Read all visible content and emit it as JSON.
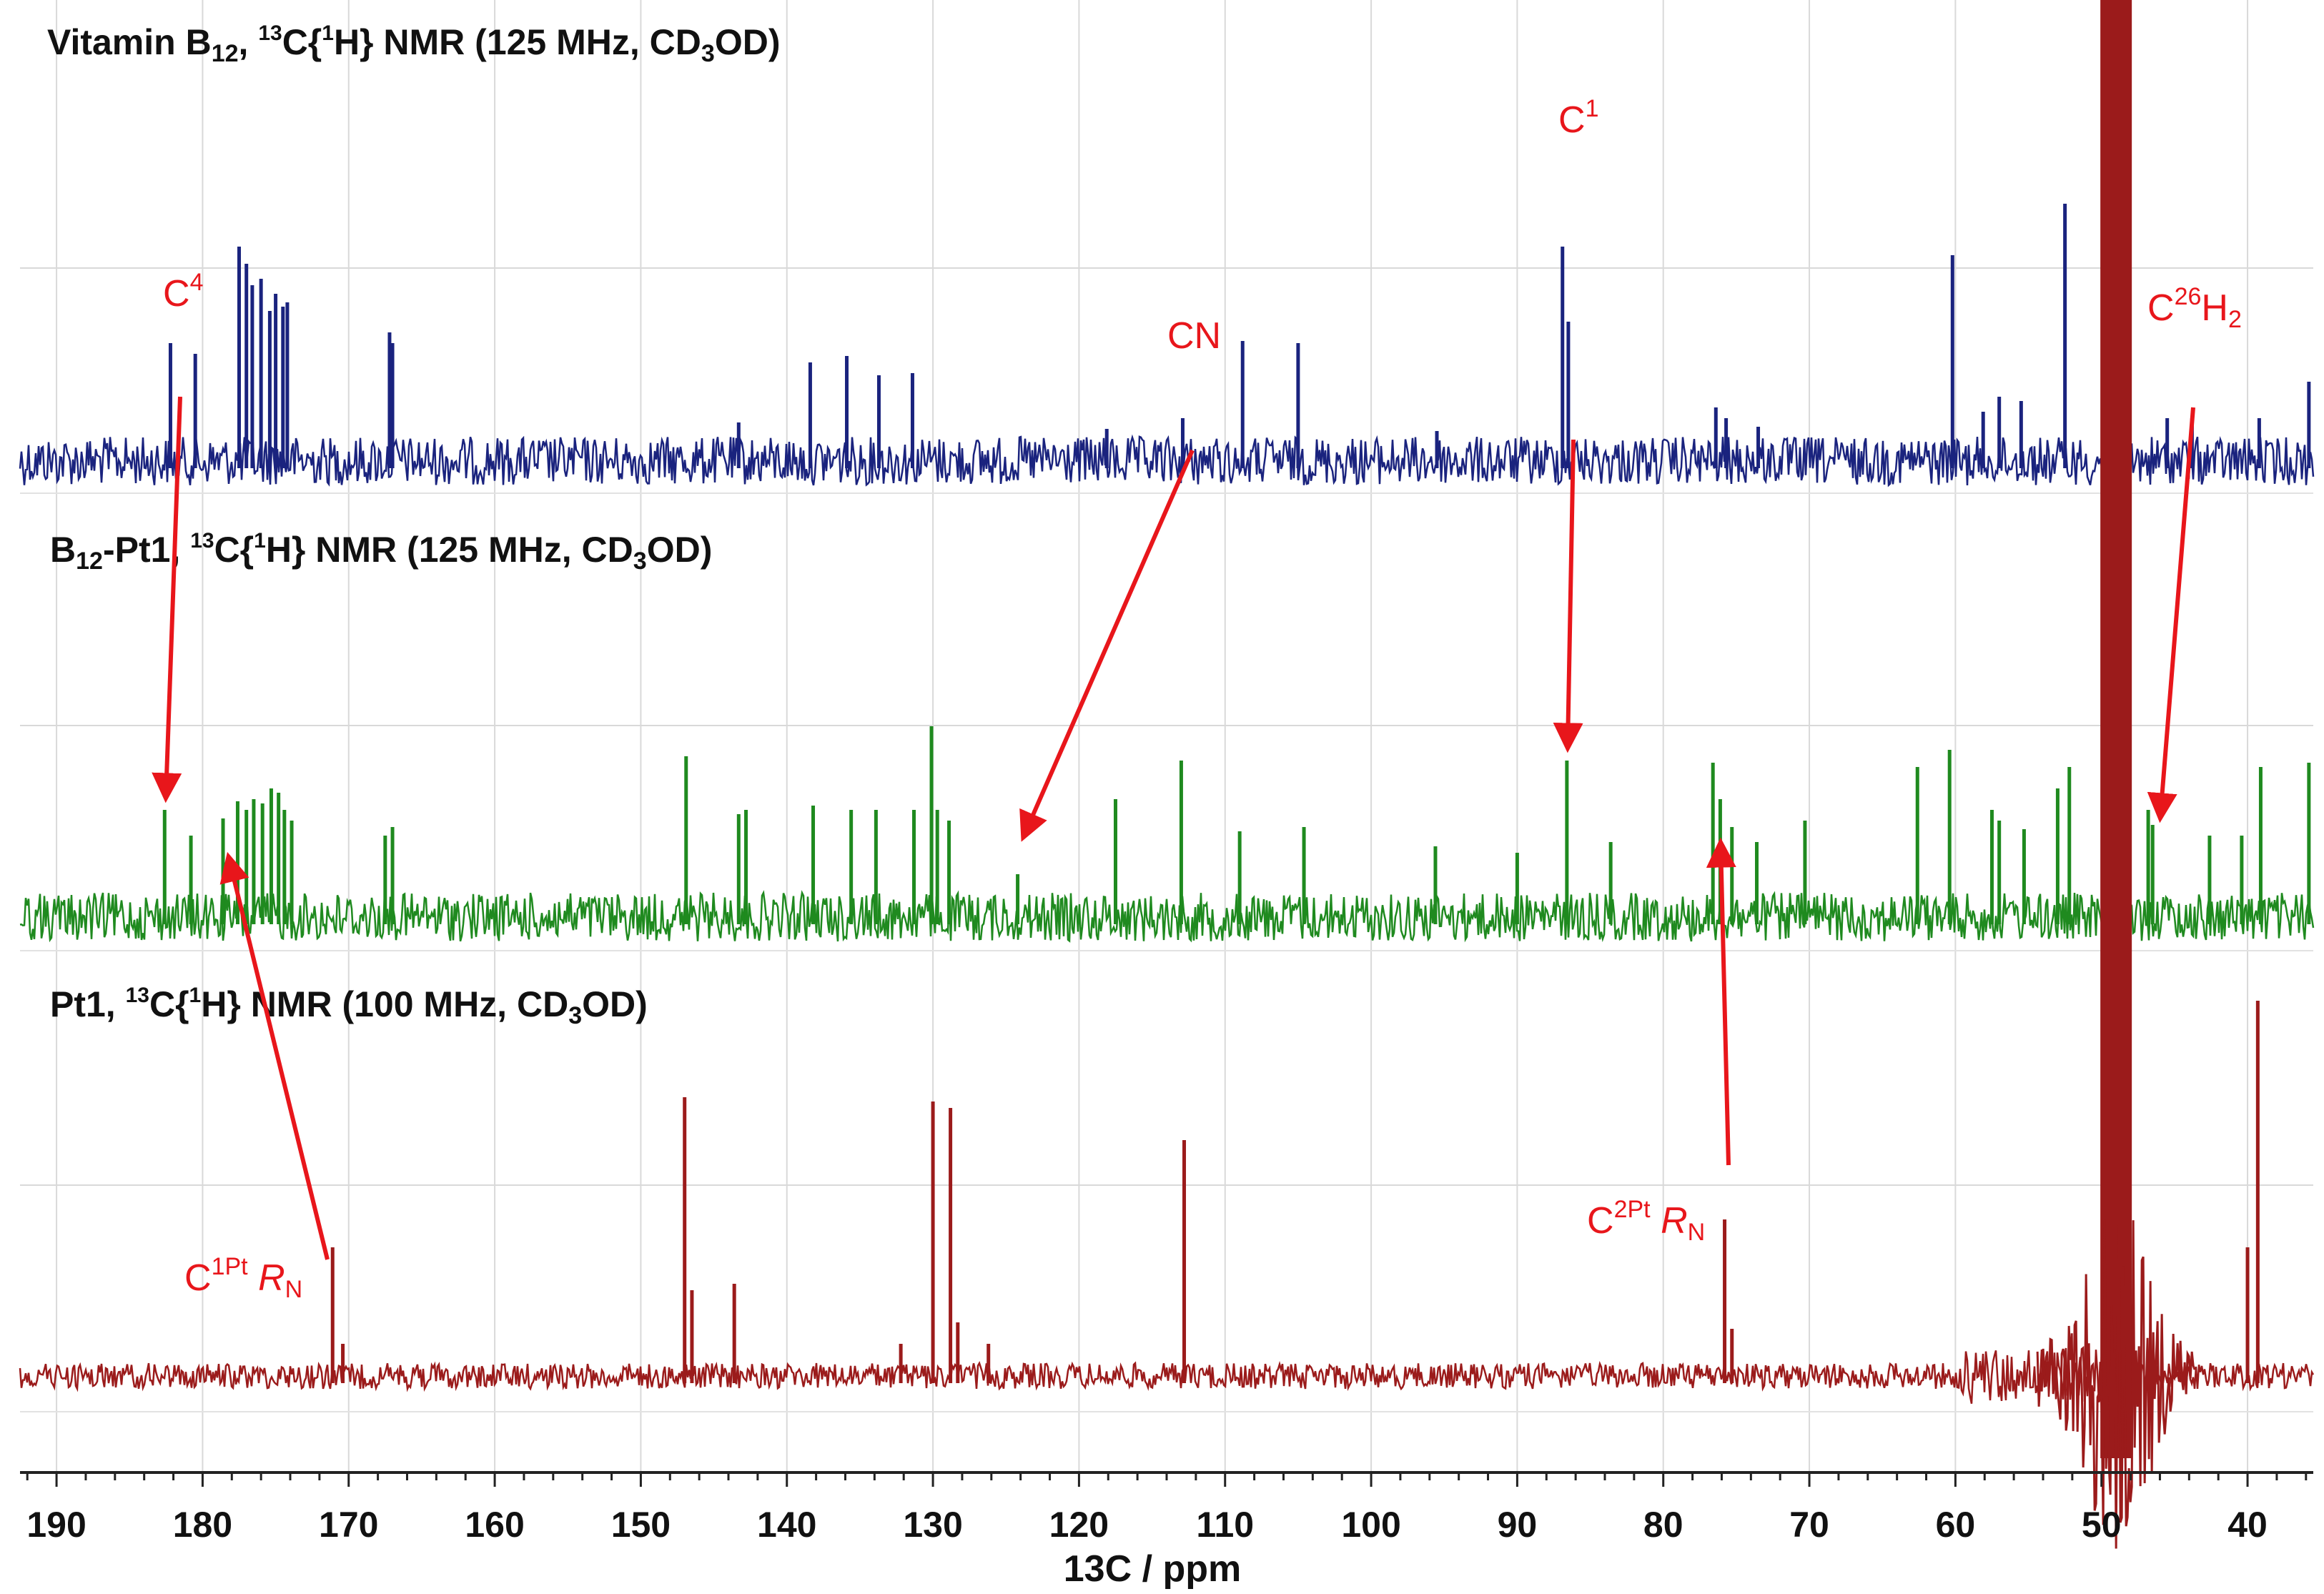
{
  "chart_data": {
    "type": "line",
    "xlabel": "13C / ppm",
    "xlim": [
      192.5,
      35.5
    ],
    "x_reversed": true,
    "x_ticks": [
      190,
      180,
      170,
      160,
      150,
      140,
      130,
      120,
      110,
      100,
      90,
      80,
      70,
      60,
      50,
      40
    ],
    "grid": true,
    "colors": {
      "vitamin_b12": "#1a237e",
      "b12_pt1": "#1f8a1f",
      "pt1": "#9b1b1b",
      "annotation": "#e8161b",
      "text": "#111111"
    },
    "series": [
      {
        "name_parts": {
          "prefix": "Vitamin B",
          "sub1": "12",
          "mid1": ", ",
          "sup": "13",
          "mid2": "C{",
          "sup2": "1",
          "mid3": "H} NMR (125 MHz, CD",
          "sub2": "3",
          "tail": "OD)"
        },
        "peaks": [
          [
            182.2,
            0.55
          ],
          [
            180.5,
            0.5
          ],
          [
            177.5,
            1.0
          ],
          [
            177.0,
            0.92
          ],
          [
            176.6,
            0.82
          ],
          [
            176.0,
            0.85
          ],
          [
            175.4,
            0.7
          ],
          [
            175.0,
            0.78
          ],
          [
            174.5,
            0.72
          ],
          [
            174.2,
            0.74
          ],
          [
            167.2,
            0.6
          ],
          [
            167.0,
            0.55
          ],
          [
            138.4,
            0.46
          ],
          [
            135.9,
            0.49
          ],
          [
            133.7,
            0.4
          ],
          [
            131.4,
            0.41
          ],
          [
            143.3,
            0.18
          ],
          [
            118.1,
            0.15
          ],
          [
            112.9,
            0.2
          ],
          [
            108.8,
            0.56
          ],
          [
            105.0,
            0.55
          ],
          [
            95.5,
            0.14
          ],
          [
            86.9,
            1.0
          ],
          [
            86.5,
            0.65
          ],
          [
            76.4,
            0.25
          ],
          [
            75.7,
            0.2
          ],
          [
            73.5,
            0.16
          ],
          [
            60.2,
            0.96
          ],
          [
            58.1,
            0.23
          ],
          [
            57.0,
            0.3
          ],
          [
            55.5,
            0.28
          ],
          [
            52.5,
            1.2
          ],
          [
            49.7,
            0.18
          ],
          [
            45.5,
            0.2
          ],
          [
            43.8,
            0.2
          ],
          [
            39.2,
            0.2
          ],
          [
            35.8,
            0.37
          ]
        ],
        "unlabeled_peak_heights_note_omitted": true
      },
      {
        "name_parts": {
          "prefix": "B",
          "sub1": "12",
          "mid1": "-Pt1, ",
          "sup": "13",
          "mid2": "C{",
          "sup2": "1",
          "mid3": "H} NMR (125 MHz, CD",
          "sub2": "3",
          "tail": "OD)"
        },
        "peaks": [
          [
            182.6,
            0.5
          ],
          [
            180.8,
            0.38
          ],
          [
            178.6,
            0.46
          ],
          [
            177.6,
            0.54
          ],
          [
            177.0,
            0.5
          ],
          [
            176.5,
            0.55
          ],
          [
            175.9,
            0.53
          ],
          [
            175.3,
            0.6
          ],
          [
            174.8,
            0.58
          ],
          [
            174.4,
            0.5
          ],
          [
            173.9,
            0.45
          ],
          [
            167.5,
            0.38
          ],
          [
            167.0,
            0.42
          ],
          [
            146.9,
            0.75
          ],
          [
            143.3,
            0.48
          ],
          [
            142.8,
            0.5
          ],
          [
            138.2,
            0.52
          ],
          [
            135.6,
            0.5
          ],
          [
            133.9,
            0.5
          ],
          [
            131.3,
            0.5
          ],
          [
            130.1,
            0.89
          ],
          [
            129.7,
            0.5
          ],
          [
            128.9,
            0.45
          ],
          [
            124.2,
            0.2
          ],
          [
            117.5,
            0.55
          ],
          [
            113.0,
            0.73
          ],
          [
            109.0,
            0.4
          ],
          [
            104.6,
            0.42
          ],
          [
            95.6,
            0.33
          ],
          [
            90.0,
            0.3
          ],
          [
            86.6,
            0.73
          ],
          [
            83.6,
            0.35
          ],
          [
            76.6,
            0.72
          ],
          [
            76.1,
            0.55
          ],
          [
            75.3,
            0.42
          ],
          [
            73.6,
            0.35
          ],
          [
            70.3,
            0.45
          ],
          [
            62.6,
            0.7
          ],
          [
            60.4,
            0.78
          ],
          [
            57.5,
            0.5
          ],
          [
            57.0,
            0.45
          ],
          [
            55.3,
            0.41
          ],
          [
            53.0,
            0.6
          ],
          [
            52.2,
            0.7
          ],
          [
            46.8,
            0.5
          ],
          [
            46.5,
            0.43
          ],
          [
            42.6,
            0.38
          ],
          [
            40.4,
            0.38
          ],
          [
            39.1,
            0.7
          ],
          [
            35.8,
            0.72
          ]
        ]
      },
      {
        "name_parts": {
          "prefix": "Pt1, ",
          "sub1": "",
          "mid1": "",
          "sup": "13",
          "mid2": "C{",
          "sup2": "1",
          "mid3": "H} NMR (100 MHz, CD",
          "sub2": "3",
          "tail": "OD)"
        },
        "peaks": [
          [
            171.1,
            0.6
          ],
          [
            170.4,
            0.15
          ],
          [
            147.0,
            1.3
          ],
          [
            146.5,
            0.4
          ],
          [
            143.6,
            0.43
          ],
          [
            132.2,
            0.15
          ],
          [
            130.0,
            1.28
          ],
          [
            128.8,
            1.25
          ],
          [
            128.3,
            0.25
          ],
          [
            126.2,
            0.15
          ],
          [
            112.8,
            1.1
          ],
          [
            75.8,
            0.73
          ],
          [
            75.3,
            0.22
          ],
          [
            40.0,
            0.6
          ],
          [
            39.3,
            1.75
          ]
        ],
        "solvent_peak_ppm": 49.0
      }
    ],
    "annotations": {
      "c4": {
        "base": "C",
        "sup": "4"
      },
      "cn": {
        "base": "CN"
      },
      "c1": {
        "base": "C",
        "sup": "1"
      },
      "c26": {
        "base": "C",
        "sup": "26",
        "mid": "H",
        "sub": "2"
      },
      "c1pt": {
        "base": "C",
        "sup": "1Pt",
        "space": " ",
        "italic": "R",
        "sub": "N"
      },
      "c2pt": {
        "base": "C",
        "sup": "2Pt",
        "space": " ",
        "italic": "R",
        "sub": "N"
      }
    }
  }
}
